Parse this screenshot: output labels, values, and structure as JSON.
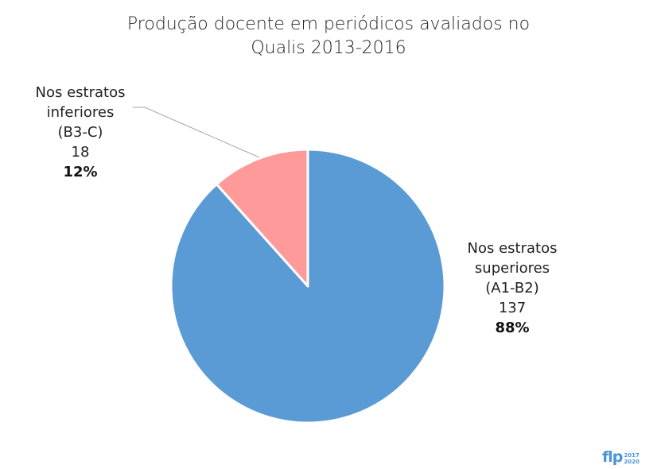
{
  "chart_data": {
    "type": "pie",
    "title_lines": [
      "Produção docente em periódicos avaliados no",
      "Qualis 2013-2016"
    ],
    "slices": [
      {
        "label_lines": [
          "Nos estratos",
          "superiores",
          "(A1-B2)"
        ],
        "value": 137,
        "value_label": "137",
        "percent_label": "88%",
        "color": "#5b9bd5"
      },
      {
        "label_lines": [
          "Nos estratos",
          "inferiores",
          "(B3-C)"
        ],
        "value": 18,
        "value_label": "18",
        "percent_label": "12%",
        "color": "#ff9a9a"
      }
    ],
    "legend": "none"
  },
  "logo": {
    "text": "flp",
    "year_top": "2017",
    "year_bottom": "2020"
  }
}
